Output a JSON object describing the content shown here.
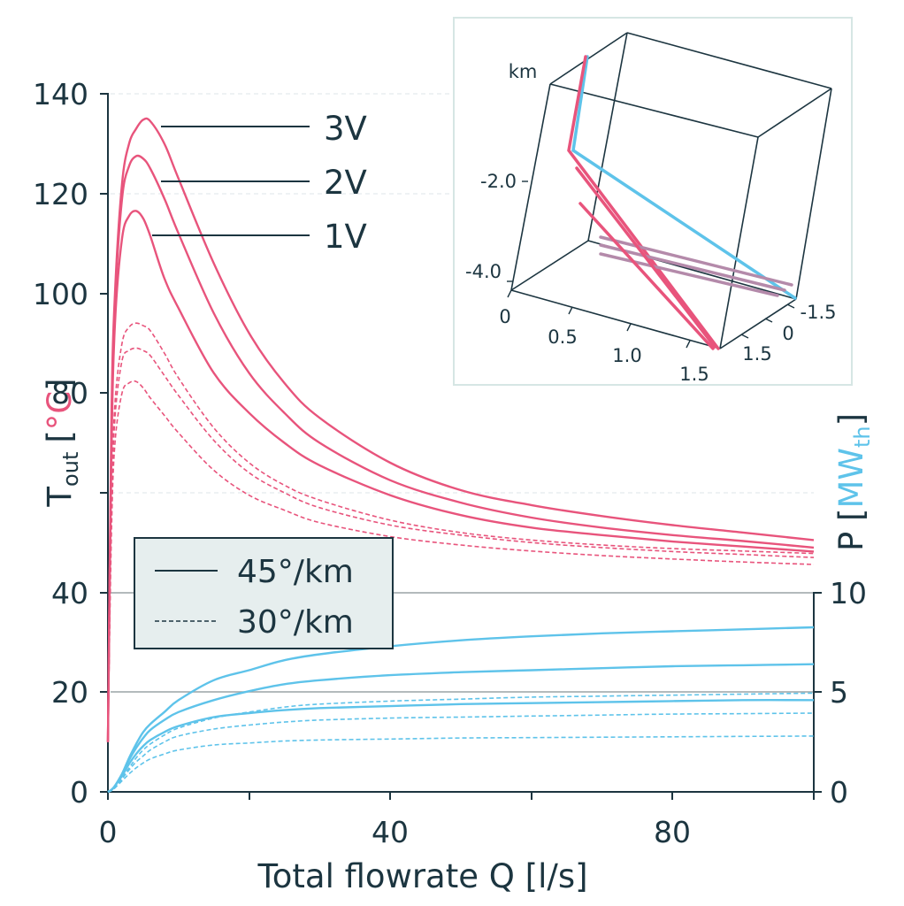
{
  "colors": {
    "temperature": "#e8547c",
    "power": "#5ec3ea",
    "axis": "#1c3540",
    "legend_bg": "#e6eeee",
    "inset_blend": "#b48aaa"
  },
  "chart_data": [
    {
      "type": "line",
      "xlabel": "Total flowrate Q [l/s]",
      "xlim": [
        0,
        100
      ],
      "x_ticks": [
        "0",
        "40",
        "80"
      ],
      "ylabel_left": {
        "main": "T",
        "sub": "out",
        "unit_open": "[",
        "unit": "°C",
        "unit_close": "]"
      },
      "ylim_left": [
        0,
        140
      ],
      "y_ticks_left": [
        "0",
        "20",
        "40",
        "80",
        "100",
        "120",
        "140"
      ],
      "ylabel_right": {
        "open": "P [",
        "unit": "MW",
        "sub": "th",
        "close": "]"
      },
      "ylim_right": [
        0,
        35
      ],
      "y_ticks_right": [
        "0",
        "5",
        "10"
      ],
      "grid": "dashed horizontal at 60,120,140; solid at 20,40",
      "legend": {
        "placement": "lower-left of temperature area",
        "entries": [
          {
            "label": "45°/km",
            "style": "solid"
          },
          {
            "label": "30°/km",
            "style": "dashed"
          }
        ]
      },
      "annotations": [
        "3V",
        "2V",
        "1V"
      ],
      "x": [
        0,
        0.5,
        1,
        2,
        3,
        4,
        5,
        6,
        8,
        10,
        15,
        20,
        25,
        30,
        40,
        50,
        60,
        70,
        80,
        90,
        100
      ],
      "series": [
        {
          "group": "temperature",
          "gradient": "45°/km",
          "well": "3V",
          "style": "solid",
          "values": [
            10,
            75,
            100,
            122,
            130,
            133,
            134.8,
            134.5,
            130,
            123,
            106,
            92,
            82,
            75,
            66,
            60.5,
            57.5,
            55.3,
            53.5,
            52,
            50.5
          ]
        },
        {
          "group": "temperature",
          "gradient": "45°/km",
          "well": "2V",
          "style": "solid",
          "values": [
            10,
            72,
            98,
            119,
            125.5,
            127.5,
            127,
            125,
            119,
            112,
            96,
            84,
            76,
            70,
            62.5,
            58,
            55,
            53,
            51.5,
            50.3,
            49
          ]
        },
        {
          "group": "temperature",
          "gradient": "45°/km",
          "well": "1V",
          "style": "solid",
          "values": [
            10,
            68,
            94,
            111,
            115.5,
            116.5,
            115,
            111.5,
            103,
            97,
            84,
            76,
            70,
            65.5,
            59.5,
            55.5,
            53,
            51.5,
            50.2,
            49.2,
            48.2
          ]
        },
        {
          "group": "temperature",
          "gradient": "30°/km",
          "well": "3V",
          "style": "dashed",
          "values": [
            10,
            58,
            78,
            90,
            93.2,
            94,
            93.5,
            92.5,
            88,
            83,
            73,
            66,
            61.5,
            58.5,
            54.5,
            52,
            50.5,
            49.5,
            48.8,
            48.3,
            47.8
          ]
        },
        {
          "group": "temperature",
          "gradient": "30°/km",
          "well": "2V",
          "style": "dashed",
          "values": [
            10,
            56,
            75,
            86.5,
            88.5,
            89,
            88.5,
            87.5,
            83.5,
            79.5,
            70.5,
            64,
            60,
            57,
            53.5,
            51.5,
            50,
            49,
            48.2,
            47.6,
            47
          ]
        },
        {
          "group": "temperature",
          "gradient": "30°/km",
          "well": "1V",
          "style": "dashed",
          "values": [
            10,
            52,
            70,
            80,
            82,
            82.3,
            81,
            79,
            75.5,
            72,
            64.5,
            59.5,
            56.5,
            54,
            51.2,
            49.5,
            48.3,
            47.4,
            46.7,
            46.1,
            45.6
          ]
        },
        {
          "group": "power",
          "gradient": "45°/km",
          "well": "3V",
          "style": "solid",
          "values": [
            0,
            0.1,
            0.3,
            0.9,
            1.7,
            2.4,
            3.0,
            3.4,
            4.0,
            4.6,
            5.6,
            6.1,
            6.6,
            6.9,
            7.3,
            7.6,
            7.8,
            7.95,
            8.05,
            8.15,
            8.25
          ]
        },
        {
          "group": "power",
          "gradient": "45°/km",
          "well": "2V",
          "style": "solid",
          "values": [
            0,
            0.1,
            0.3,
            0.9,
            1.6,
            2.2,
            2.7,
            3.1,
            3.6,
            4.0,
            4.6,
            5.05,
            5.4,
            5.6,
            5.85,
            6.0,
            6.1,
            6.2,
            6.3,
            6.35,
            6.4
          ]
        },
        {
          "group": "power",
          "gradient": "45°/km",
          "well": "1V",
          "style": "solid",
          "values": [
            0,
            0.1,
            0.3,
            0.8,
            1.4,
            1.9,
            2.3,
            2.6,
            3.0,
            3.3,
            3.75,
            3.95,
            4.1,
            4.2,
            4.3,
            4.4,
            4.45,
            4.5,
            4.55,
            4.6,
            4.6
          ]
        },
        {
          "group": "power",
          "gradient": "30°/km",
          "well": "3V",
          "style": "dashed",
          "values": [
            0,
            0.08,
            0.25,
            0.7,
            1.2,
            1.7,
            2.1,
            2.4,
            2.85,
            3.2,
            3.7,
            4.0,
            4.25,
            4.4,
            4.55,
            4.65,
            4.75,
            4.8,
            4.85,
            4.9,
            4.95
          ]
        },
        {
          "group": "power",
          "gradient": "30°/km",
          "well": "2V",
          "style": "dashed",
          "values": [
            0,
            0.07,
            0.22,
            0.65,
            1.1,
            1.5,
            1.8,
            2.1,
            2.5,
            2.8,
            3.15,
            3.35,
            3.5,
            3.6,
            3.7,
            3.75,
            3.8,
            3.85,
            3.9,
            3.92,
            3.95
          ]
        },
        {
          "group": "power",
          "gradient": "30°/km",
          "well": "1V",
          "style": "dashed",
          "values": [
            0,
            0.06,
            0.2,
            0.55,
            0.9,
            1.2,
            1.45,
            1.65,
            1.9,
            2.1,
            2.35,
            2.45,
            2.55,
            2.6,
            2.65,
            2.7,
            2.72,
            2.74,
            2.76,
            2.78,
            2.8
          ]
        }
      ]
    },
    {
      "type": "line",
      "subtype": "3d well trajectories",
      "zlabel": "km",
      "z_ticks": [
        "-2.0",
        "-4.0"
      ],
      "x_ticks": [
        "0",
        "0.5",
        "1.0",
        "1.5"
      ],
      "y_ticks": [
        "-1.5",
        "0",
        "1.5"
      ]
    }
  ]
}
